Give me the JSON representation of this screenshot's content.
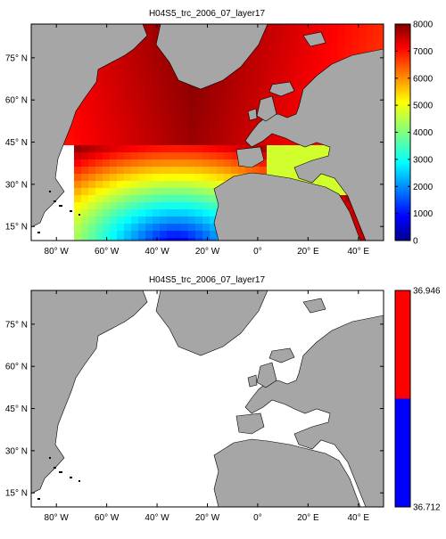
{
  "chart_data": [
    {
      "type": "heatmap",
      "title": "H04S5_trc_2006_07_layer17",
      "x_ticks": [
        "80° W",
        "60° W",
        "40° W",
        "20° W",
        "0°",
        "20° E",
        "40° E"
      ],
      "y_ticks": [
        "15° N",
        "30° N",
        "45° N",
        "60° N",
        "75° N"
      ],
      "x_values": [
        -80,
        -60,
        -40,
        -20,
        0,
        20,
        40
      ],
      "y_values": [
        15,
        30,
        45,
        60,
        75
      ],
      "xlim": [
        -90,
        50
      ],
      "ylim": [
        10,
        87
      ],
      "colorbar": {
        "ticks": [
          "0",
          "1000",
          "2000",
          "3000",
          "4000",
          "5000",
          "6000",
          "7000",
          "8000"
        ],
        "values": [
          0,
          1000,
          2000,
          3000,
          4000,
          5000,
          6000,
          7000,
          8000
        ],
        "range": [
          0,
          8000
        ],
        "colormap": "jet"
      },
      "colors": {
        "land": "#a6a6a6",
        "nodata": "#ffffff",
        "coast": "#000000"
      }
    },
    {
      "type": "heatmap",
      "title": "H04S5_trc_2006_07_layer17",
      "x_ticks": [
        "80° W",
        "60° W",
        "40° W",
        "20° W",
        "0°",
        "20° E",
        "40° E"
      ],
      "y_ticks": [
        "15° N",
        "30° N",
        "45° N",
        "60° N",
        "75° N"
      ],
      "x_values": [
        -80,
        -60,
        -40,
        -20,
        0,
        20,
        40
      ],
      "y_values": [
        15,
        30,
        45,
        60,
        75
      ],
      "xlim": [
        -90,
        50
      ],
      "ylim": [
        10,
        87
      ],
      "colorbar": {
        "ticks": [
          "36.946",
          "36.712"
        ],
        "values": [
          36.946,
          36.712
        ],
        "range": [
          36.712,
          36.946
        ],
        "segments": [
          {
            "color": "#ff0000",
            "from": 36.829,
            "to": 36.946
          },
          {
            "color": "#0000ff",
            "from": 36.712,
            "to": 36.829
          }
        ]
      },
      "colors": {
        "land": "#a6a6a6",
        "nodata": "#ffffff",
        "coast": "#000000"
      }
    }
  ]
}
